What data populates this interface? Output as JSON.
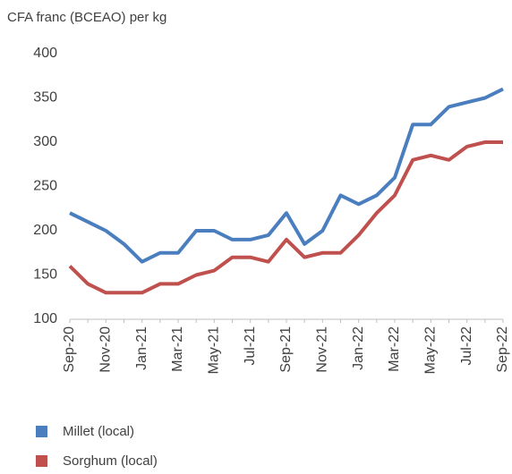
{
  "chart_data": {
    "type": "line",
    "y_label": "CFA franc (BCEAO) per kg",
    "categories": [
      "Sep-20",
      null,
      "Nov-20",
      null,
      "Jan-21",
      null,
      "Mar-21",
      null,
      "May-21",
      null,
      "Jul-21",
      null,
      "Sep-21",
      null,
      "Nov-21",
      null,
      "Jan-22",
      null,
      "Mar-22",
      null,
      "May-22",
      null,
      "Jul-22",
      null,
      "Sep-22"
    ],
    "series": [
      {
        "name": "Millet (local)",
        "color": "#4a7ebf",
        "values": [
          220,
          210,
          200,
          185,
          165,
          175,
          175,
          200,
          200,
          190,
          190,
          195,
          220,
          185,
          200,
          240,
          230,
          240,
          260,
          320,
          320,
          340,
          345,
          350,
          360
        ]
      },
      {
        "name": "Sorghum (local)",
        "color": "#c0504d",
        "values": [
          160,
          140,
          130,
          130,
          130,
          140,
          140,
          150,
          155,
          170,
          170,
          165,
          190,
          170,
          175,
          175,
          195,
          220,
          240,
          280,
          285,
          280,
          295,
          300,
          300
        ]
      }
    ],
    "ylim": [
      100,
      400
    ],
    "yticks": [
      100,
      150,
      200,
      250,
      300,
      350,
      400
    ],
    "grid": false,
    "legend": "bottom-left"
  }
}
